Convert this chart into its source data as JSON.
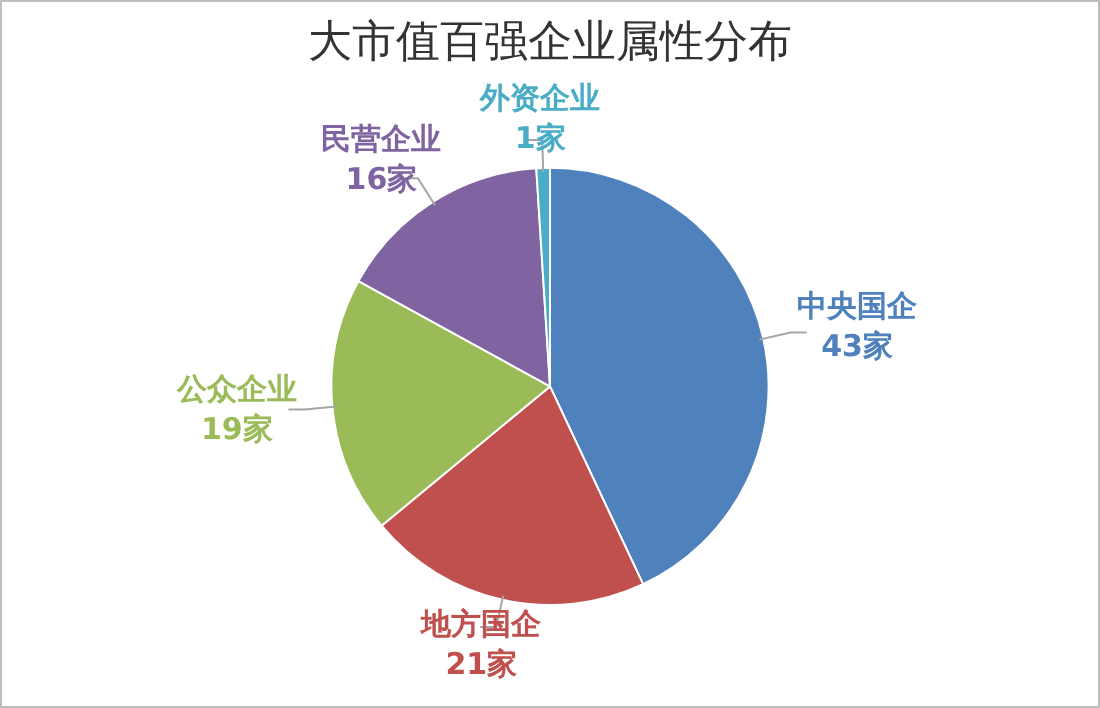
{
  "chart_data": {
    "type": "pie",
    "title": "大市值百强企业属性分布",
    "categories": [
      "中央国企",
      "地方国企",
      "公众企业",
      "民营企业",
      "外资企业"
    ],
    "values": [
      43,
      21,
      19,
      16,
      1
    ],
    "value_labels": [
      "43家",
      "21家",
      "19家",
      "16家",
      "1家"
    ],
    "colors": [
      "#4f81bd",
      "#c0504d",
      "#9bbb59",
      "#8064a2",
      "#4bacc6"
    ],
    "legend": false
  }
}
